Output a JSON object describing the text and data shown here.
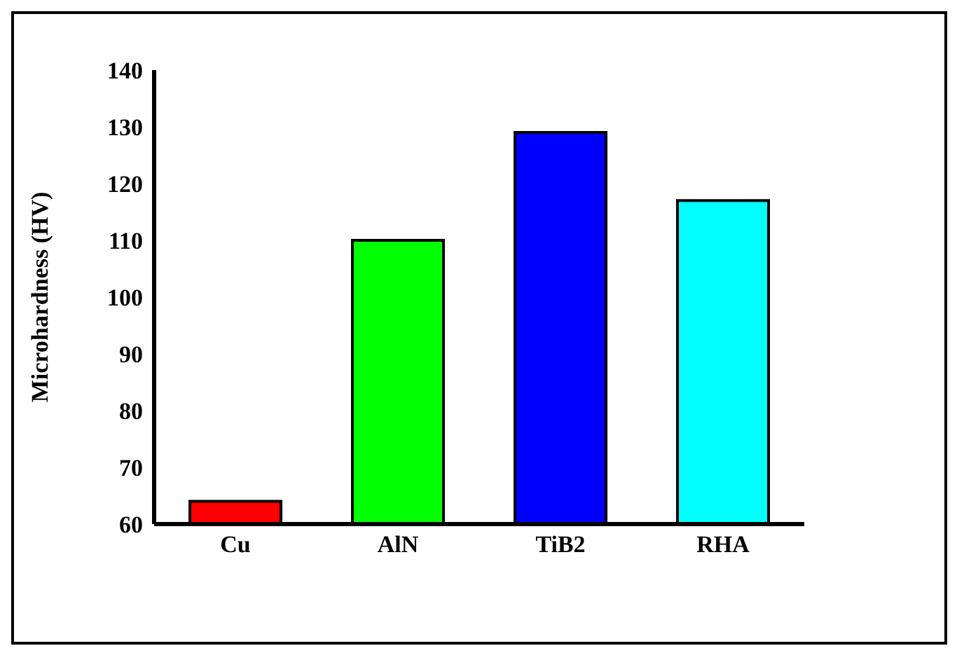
{
  "chart_data": {
    "type": "bar",
    "ylabel": "Microhardness (HV)",
    "categories": [
      "Cu",
      "AlN",
      "TiB2",
      "RHA"
    ],
    "values": [
      64,
      110,
      129,
      117
    ],
    "colors": [
      "#ff0000",
      "#00ff00",
      "#0000ff",
      "#00ffff"
    ],
    "ylim": [
      60,
      140
    ],
    "yticks": [
      60,
      70,
      80,
      90,
      100,
      110,
      120,
      130,
      140
    ],
    "grid": false
  }
}
